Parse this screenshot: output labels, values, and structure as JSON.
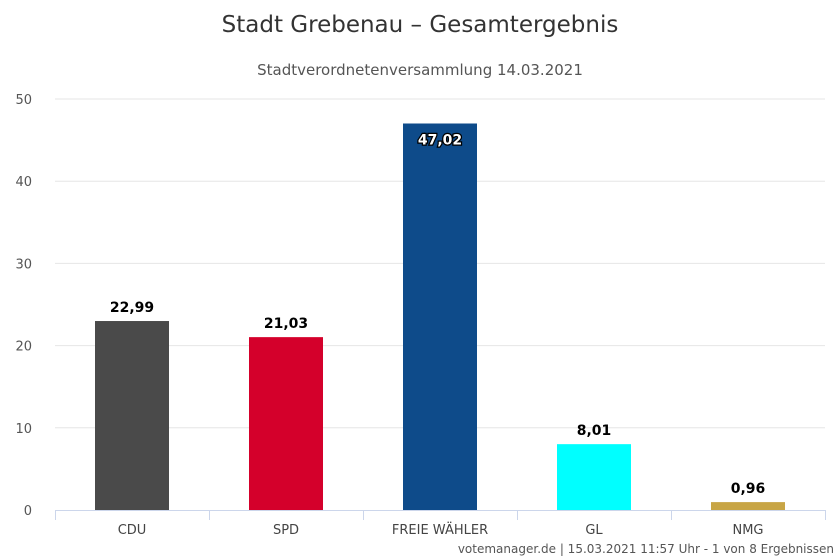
{
  "chart_data": {
    "type": "bar",
    "title": "Stadt Grebenau – Gesamtergebnis",
    "subtitle": "Stadtverordnetenversammlung 14.03.2021",
    "categories": [
      "CDU",
      "SPD",
      "FREIE WÄHLER",
      "GL",
      "NMG"
    ],
    "values": [
      22.99,
      21.03,
      47.02,
      8.01,
      0.96
    ],
    "value_labels": [
      "22,99",
      "21,03",
      "47,02",
      "8,01",
      "0,96"
    ],
    "colors": [
      "#4a4a4a",
      "#d4002b",
      "#0e4b8a",
      "#00ffff",
      "#c8a545"
    ],
    "ylim": [
      0,
      50
    ],
    "yticks": [
      "0",
      "10",
      "20",
      "30",
      "40",
      "50"
    ],
    "ytick_values": [
      0,
      10,
      20,
      30,
      40,
      50
    ],
    "grid": true,
    "legend": "none",
    "xlabel": "",
    "ylabel": ""
  },
  "credits": "votemanager.de | 15.03.2021 11:57 Uhr - 1 von 8 Ergebnissen"
}
